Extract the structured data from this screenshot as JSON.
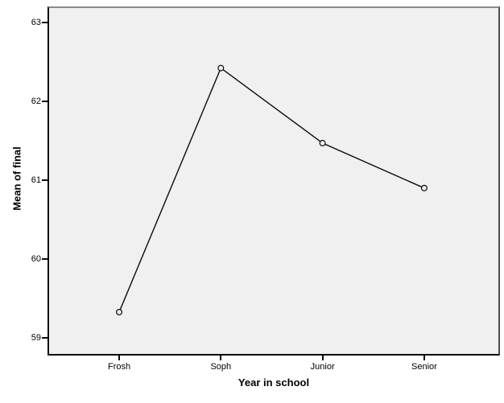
{
  "chart_data": {
    "type": "line",
    "title": "",
    "categories": [
      "Frosh",
      "Soph",
      "Junior",
      "Senior"
    ],
    "values": [
      59.33,
      62.42,
      61.47,
      60.9
    ],
    "xlabel": "Year in school",
    "ylabel": "Mean of final",
    "yticks": [
      59,
      60,
      61,
      62,
      63
    ],
    "ylim": [
      58.8,
      63.18
    ],
    "grid": false,
    "legend": "none",
    "marker": "open-circle",
    "colors": {
      "plot_background": "#f0f0f0",
      "page_background": "#ffffff",
      "line": "#0a0a0a",
      "marker_stroke": "#0a0a0a",
      "marker_fill": "#f0f0f0",
      "axis": "#0a0a0a",
      "frame_top": "#8a8a8a",
      "frame_right": "#4d4d4d",
      "text": "#000000"
    }
  }
}
